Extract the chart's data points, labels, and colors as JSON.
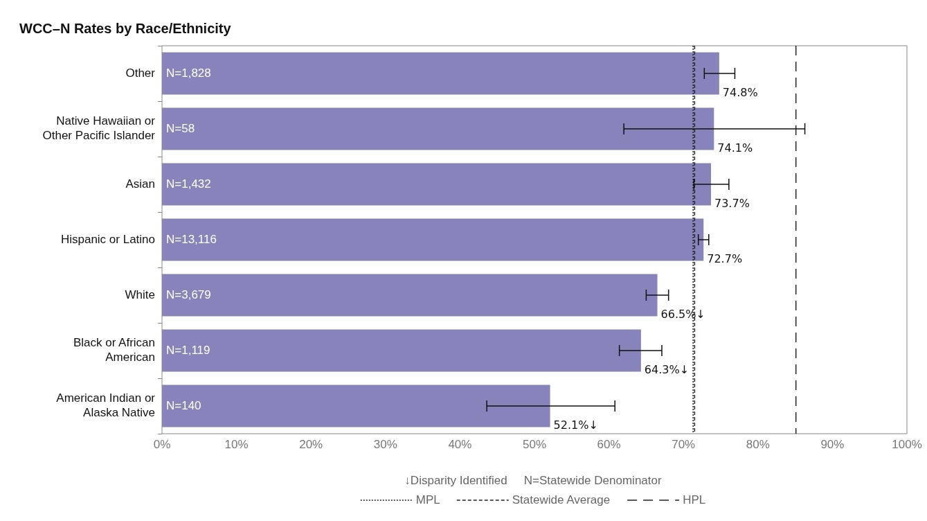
{
  "chart_data": {
    "type": "bar",
    "orientation": "horizontal",
    "title": "WCC–N Rates by Race/Ethnicity",
    "categories": [
      "Other",
      "Native Hawaiian or Other Pacific Islander",
      "Asian",
      "Hispanic or Latino",
      "White",
      "Black or African American",
      "American Indian or Alaska Native"
    ],
    "values": [
      74.8,
      74.1,
      73.7,
      72.7,
      66.5,
      64.3,
      52.1
    ],
    "value_labels": [
      "74.8%",
      "74.1%",
      "73.7%",
      "72.7%",
      "66.5%↓",
      "64.3%↓",
      "52.1%↓"
    ],
    "errors": [
      [
        72.8,
        76.9
      ],
      [
        62.0,
        86.3
      ],
      [
        71.4,
        76.1
      ],
      [
        72.0,
        73.4
      ],
      [
        65.0,
        68.0
      ],
      [
        61.4,
        67.1
      ],
      [
        43.6,
        60.8
      ]
    ],
    "color": "#8783bb",
    "xlim": [
      0,
      100
    ],
    "xticks": [
      {
        "value": 0,
        "label": "0%"
      },
      {
        "value": 10,
        "label": "10%"
      },
      {
        "value": 20,
        "label": "20%"
      },
      {
        "value": 30,
        "label": "30%"
      },
      {
        "value": 40,
        "label": "40%"
      },
      {
        "value": 50,
        "label": "50%"
      },
      {
        "value": 60,
        "label": "60%"
      },
      {
        "value": 70,
        "label": "70%"
      },
      {
        "value": 80,
        "label": "80%"
      },
      {
        "value": 90,
        "label": "90%"
      },
      {
        "value": 100,
        "label": "100%"
      }
    ],
    "ref_lines": [
      {
        "axis": "x",
        "value": 71.3,
        "label": "MPL",
        "line_style": "dotted"
      },
      {
        "axis": "x",
        "value": 71.5,
        "label": "Statewide Average",
        "line_style": "dashed"
      },
      {
        "axis": "x",
        "value": 85.1,
        "label": "HPL",
        "line_style": "longdash"
      }
    ],
    "annotations": [
      {
        "text": "N=1,828",
        "y": "Other"
      },
      {
        "text": "N=58",
        "y": "Native Hawaiian or Other Pacific Islander"
      },
      {
        "text": "N=1,432",
        "y": "Asian"
      },
      {
        "text": "N=13,116",
        "y": "Hispanic or Latino"
      },
      {
        "text": "N=3,679",
        "y": "White"
      },
      {
        "text": "N=1,119",
        "y": "Black or African American"
      },
      {
        "text": "N=140",
        "y": "American Indian or Alaska Native"
      },
      "↓Disparity Identified",
      "N=Statewide Denominator"
    ],
    "legend": "bottom",
    "grid": false
  }
}
